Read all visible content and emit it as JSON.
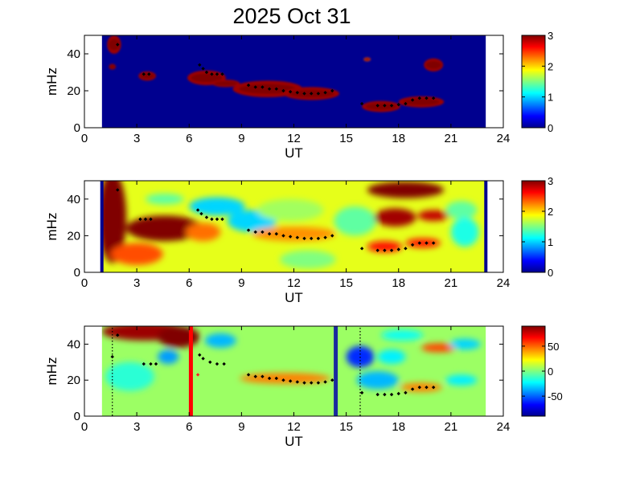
{
  "title": "2025 Oct 31",
  "colormap": [
    "#00008f",
    "#0000ff",
    "#0080ff",
    "#00ffff",
    "#80ff80",
    "#ffff00",
    "#ff8000",
    "#ff0000",
    "#800000"
  ],
  "chart_data": [
    {
      "type": "heatmap",
      "panel": "top",
      "xlabel": "UT",
      "ylabel": "mHz",
      "xlim": [
        0,
        24
      ],
      "ylim": [
        0,
        50
      ],
      "xticks": [
        0,
        3,
        6,
        9,
        12,
        15,
        18,
        21,
        24
      ],
      "yticks": [
        0,
        20,
        40
      ],
      "data_xrange": [
        1,
        23
      ],
      "colorbar": {
        "min": 0,
        "max": 3,
        "ticks": [
          0,
          1,
          2,
          3
        ]
      },
      "background_value": 0,
      "blobs": [
        {
          "x": 1.7,
          "y": 45,
          "rx": 0.4,
          "ry": 5,
          "v": 3
        },
        {
          "x": 1.6,
          "y": 33,
          "rx": 0.2,
          "ry": 1.5,
          "v": 3
        },
        {
          "x": 3.6,
          "y": 28,
          "rx": 0.5,
          "ry": 2.5,
          "v": 3
        },
        {
          "x": 7.0,
          "y": 27,
          "rx": 1.1,
          "ry": 4,
          "v": 3
        },
        {
          "x": 8.1,
          "y": 24,
          "rx": 0.8,
          "ry": 2,
          "v": 3
        },
        {
          "x": 10.5,
          "y": 21,
          "rx": 2.0,
          "ry": 4.5,
          "v": 3
        },
        {
          "x": 13.0,
          "y": 18.5,
          "rx": 1.6,
          "ry": 3.5,
          "v": 3
        },
        {
          "x": 16.2,
          "y": 37,
          "rx": 0.2,
          "ry": 1,
          "v": 2.5
        },
        {
          "x": 17.0,
          "y": 11.5,
          "rx": 1.1,
          "ry": 3,
          "v": 3
        },
        {
          "x": 19.3,
          "y": 14,
          "rx": 1.3,
          "ry": 3,
          "v": 3
        },
        {
          "x": 20.0,
          "y": 34,
          "rx": 0.55,
          "ry": 3.5,
          "v": 3
        }
      ],
      "markers": [
        [
          1.9,
          45
        ],
        [
          3.4,
          29
        ],
        [
          3.7,
          29
        ],
        [
          6.6,
          34
        ],
        [
          6.8,
          32
        ],
        [
          7.0,
          30
        ],
        [
          7.3,
          29
        ],
        [
          7.6,
          29
        ],
        [
          7.9,
          29
        ],
        [
          9.4,
          23
        ],
        [
          9.8,
          22
        ],
        [
          10.2,
          22
        ],
        [
          10.6,
          21
        ],
        [
          11.0,
          21
        ],
        [
          11.4,
          20
        ],
        [
          11.8,
          19.5
        ],
        [
          12.2,
          19
        ],
        [
          12.6,
          18.5
        ],
        [
          13.0,
          18.5
        ],
        [
          13.4,
          18.5
        ],
        [
          13.8,
          19
        ],
        [
          14.2,
          20
        ],
        [
          15.9,
          13
        ],
        [
          16.8,
          12
        ],
        [
          17.2,
          12
        ],
        [
          17.6,
          12
        ],
        [
          18.0,
          12.5
        ],
        [
          18.4,
          13
        ],
        [
          18.8,
          15
        ],
        [
          19.2,
          16
        ],
        [
          19.6,
          16
        ],
        [
          20.0,
          16
        ]
      ]
    },
    {
      "type": "heatmap",
      "panel": "middle",
      "xlabel": "UT",
      "ylabel": "mHz",
      "xlim": [
        0,
        24
      ],
      "ylim": [
        0,
        50
      ],
      "xticks": [
        0,
        3,
        6,
        9,
        12,
        15,
        18,
        21,
        24
      ],
      "yticks": [
        0,
        20,
        40
      ],
      "data_xrange": [
        1,
        23
      ],
      "colorbar": {
        "min": 0,
        "max": 3,
        "ticks": [
          0,
          1,
          2,
          3
        ]
      },
      "background_value": 1.8,
      "edge_lines": [
        1,
        23
      ],
      "blobs": [
        {
          "x": 1.6,
          "y": 30,
          "rx": 0.8,
          "ry": 25,
          "v": 3
        },
        {
          "x": 4.6,
          "y": 24,
          "rx": 2.2,
          "ry": 7,
          "v": 3
        },
        {
          "x": 3.0,
          "y": 10,
          "rx": 1.5,
          "ry": 6,
          "v": 2.4
        },
        {
          "x": 6.8,
          "y": 22,
          "rx": 1.0,
          "ry": 5,
          "v": 2.3
        },
        {
          "x": 7.6,
          "y": 36,
          "rx": 1.6,
          "ry": 5,
          "v": 1.0
        },
        {
          "x": 9.6,
          "y": 28,
          "rx": 1.4,
          "ry": 6,
          "v": 1.0
        },
        {
          "x": 4.6,
          "y": 40,
          "rx": 1.1,
          "ry": 3,
          "v": 1.4
        },
        {
          "x": 11.8,
          "y": 34,
          "rx": 1.9,
          "ry": 6,
          "v": 1.6
        },
        {
          "x": 12.0,
          "y": 21,
          "rx": 2.4,
          "ry": 4,
          "v": 2.2
        },
        {
          "x": 12.8,
          "y": 7,
          "rx": 1.6,
          "ry": 5,
          "v": 1.5
        },
        {
          "x": 15.5,
          "y": 28,
          "rx": 1.2,
          "ry": 8,
          "v": 1.4
        },
        {
          "x": 18.4,
          "y": 45,
          "rx": 2.2,
          "ry": 4.5,
          "v": 3
        },
        {
          "x": 17.8,
          "y": 30,
          "rx": 1.2,
          "ry": 5,
          "v": 2.9
        },
        {
          "x": 20.0,
          "y": 31,
          "rx": 0.9,
          "ry": 3,
          "v": 2.8
        },
        {
          "x": 17.2,
          "y": 14,
          "rx": 1.0,
          "ry": 3,
          "v": 2.6
        },
        {
          "x": 19.4,
          "y": 16,
          "rx": 1.0,
          "ry": 2.5,
          "v": 2.6
        },
        {
          "x": 21.6,
          "y": 34,
          "rx": 0.9,
          "ry": 5,
          "v": 1.4
        },
        {
          "x": 21.8,
          "y": 22,
          "rx": 0.8,
          "ry": 8,
          "v": 1.2
        }
      ],
      "markers": [
        [
          1.9,
          45
        ],
        [
          3.2,
          29
        ],
        [
          3.5,
          29
        ],
        [
          3.8,
          29
        ],
        [
          6.5,
          34
        ],
        [
          6.7,
          32
        ],
        [
          7.0,
          30
        ],
        [
          7.3,
          29
        ],
        [
          7.6,
          29
        ],
        [
          7.9,
          29
        ],
        [
          9.4,
          23
        ],
        [
          9.8,
          22
        ],
        [
          10.2,
          22
        ],
        [
          10.6,
          21
        ],
        [
          11.0,
          21
        ],
        [
          11.4,
          20
        ],
        [
          11.8,
          19.5
        ],
        [
          12.2,
          19
        ],
        [
          12.6,
          18.5
        ],
        [
          13.0,
          18.5
        ],
        [
          13.4,
          18.5
        ],
        [
          13.8,
          19
        ],
        [
          14.2,
          20
        ],
        [
          15.9,
          13
        ],
        [
          16.8,
          12
        ],
        [
          17.2,
          12
        ],
        [
          17.6,
          12
        ],
        [
          18.0,
          12.5
        ],
        [
          18.4,
          13
        ],
        [
          18.8,
          15
        ],
        [
          19.2,
          16
        ],
        [
          19.6,
          16
        ],
        [
          20.0,
          16
        ]
      ]
    },
    {
      "type": "heatmap",
      "panel": "bottom",
      "xlabel": "UT",
      "ylabel": "mHz",
      "xlim": [
        0,
        24
      ],
      "ylim": [
        0,
        50
      ],
      "xticks": [
        0,
        3,
        6,
        9,
        12,
        15,
        18,
        21,
        24
      ],
      "yticks": [
        0,
        20,
        40
      ],
      "data_xrange": [
        1,
        23
      ],
      "colorbar": {
        "min": -90,
        "max": 90,
        "ticks": [
          -50,
          0,
          50
        ]
      },
      "background_value": 5,
      "blobs": [
        {
          "x": 3.5,
          "y": 47,
          "rx": 2.5,
          "ry": 5,
          "v": 85
        },
        {
          "x": 5.4,
          "y": 44,
          "rx": 1.2,
          "ry": 6,
          "v": 90
        },
        {
          "x": 4.8,
          "y": 33,
          "rx": 0.6,
          "ry": 4,
          "v": -40
        },
        {
          "x": 7.8,
          "y": 42,
          "rx": 0.9,
          "ry": 4,
          "v": -35
        },
        {
          "x": 2.6,
          "y": 22,
          "rx": 1.4,
          "ry": 8,
          "v": -15
        },
        {
          "x": 11.5,
          "y": 21,
          "rx": 2.6,
          "ry": 3,
          "v": 45
        },
        {
          "x": 15.8,
          "y": 33,
          "rx": 0.8,
          "ry": 6,
          "v": -60
        },
        {
          "x": 16.8,
          "y": 20,
          "rx": 1.2,
          "ry": 5,
          "v": -35
        },
        {
          "x": 17.6,
          "y": 33,
          "rx": 0.8,
          "ry": 4,
          "v": -25
        },
        {
          "x": 18.2,
          "y": 45,
          "rx": 1.2,
          "ry": 3,
          "v": -20
        },
        {
          "x": 20.3,
          "y": 38,
          "rx": 1.0,
          "ry": 2.5,
          "v": 55
        },
        {
          "x": 21.6,
          "y": 20,
          "rx": 0.9,
          "ry": 3,
          "v": -25
        },
        {
          "x": 21.8,
          "y": 40,
          "rx": 0.9,
          "ry": 3,
          "v": -30
        },
        {
          "x": 19.3,
          "y": 16,
          "rx": 1.2,
          "ry": 2.5,
          "v": 45
        }
      ],
      "vertical_lines": [
        {
          "x": 6.1,
          "color": "#ff0000"
        },
        {
          "x": 14.4,
          "color": "#1a2aa0"
        }
      ],
      "dotted_lines": [
        1.6,
        15.8
      ],
      "markers": [
        [
          1.9,
          45
        ],
        [
          1.6,
          33
        ],
        [
          3.4,
          29
        ],
        [
          3.8,
          29
        ],
        [
          4.1,
          29
        ],
        [
          6.6,
          34
        ],
        [
          6.8,
          32
        ],
        [
          7.2,
          30
        ],
        [
          7.6,
          29
        ],
        [
          8.0,
          29
        ],
        [
          9.4,
          23
        ],
        [
          9.8,
          22
        ],
        [
          10.2,
          22
        ],
        [
          10.6,
          21
        ],
        [
          11.0,
          21
        ],
        [
          11.4,
          20
        ],
        [
          11.8,
          19.5
        ],
        [
          12.2,
          19
        ],
        [
          12.6,
          18.5
        ],
        [
          13.0,
          18.5
        ],
        [
          13.4,
          18.5
        ],
        [
          13.8,
          19
        ],
        [
          14.2,
          20
        ],
        [
          15.9,
          13
        ],
        [
          16.8,
          12
        ],
        [
          17.2,
          12
        ],
        [
          17.6,
          12
        ],
        [
          18.0,
          12.5
        ],
        [
          18.4,
          13
        ],
        [
          18.8,
          15
        ],
        [
          19.2,
          16
        ],
        [
          19.6,
          16
        ],
        [
          20.0,
          16
        ]
      ],
      "red_markers": [
        [
          6.5,
          23
        ]
      ]
    }
  ]
}
